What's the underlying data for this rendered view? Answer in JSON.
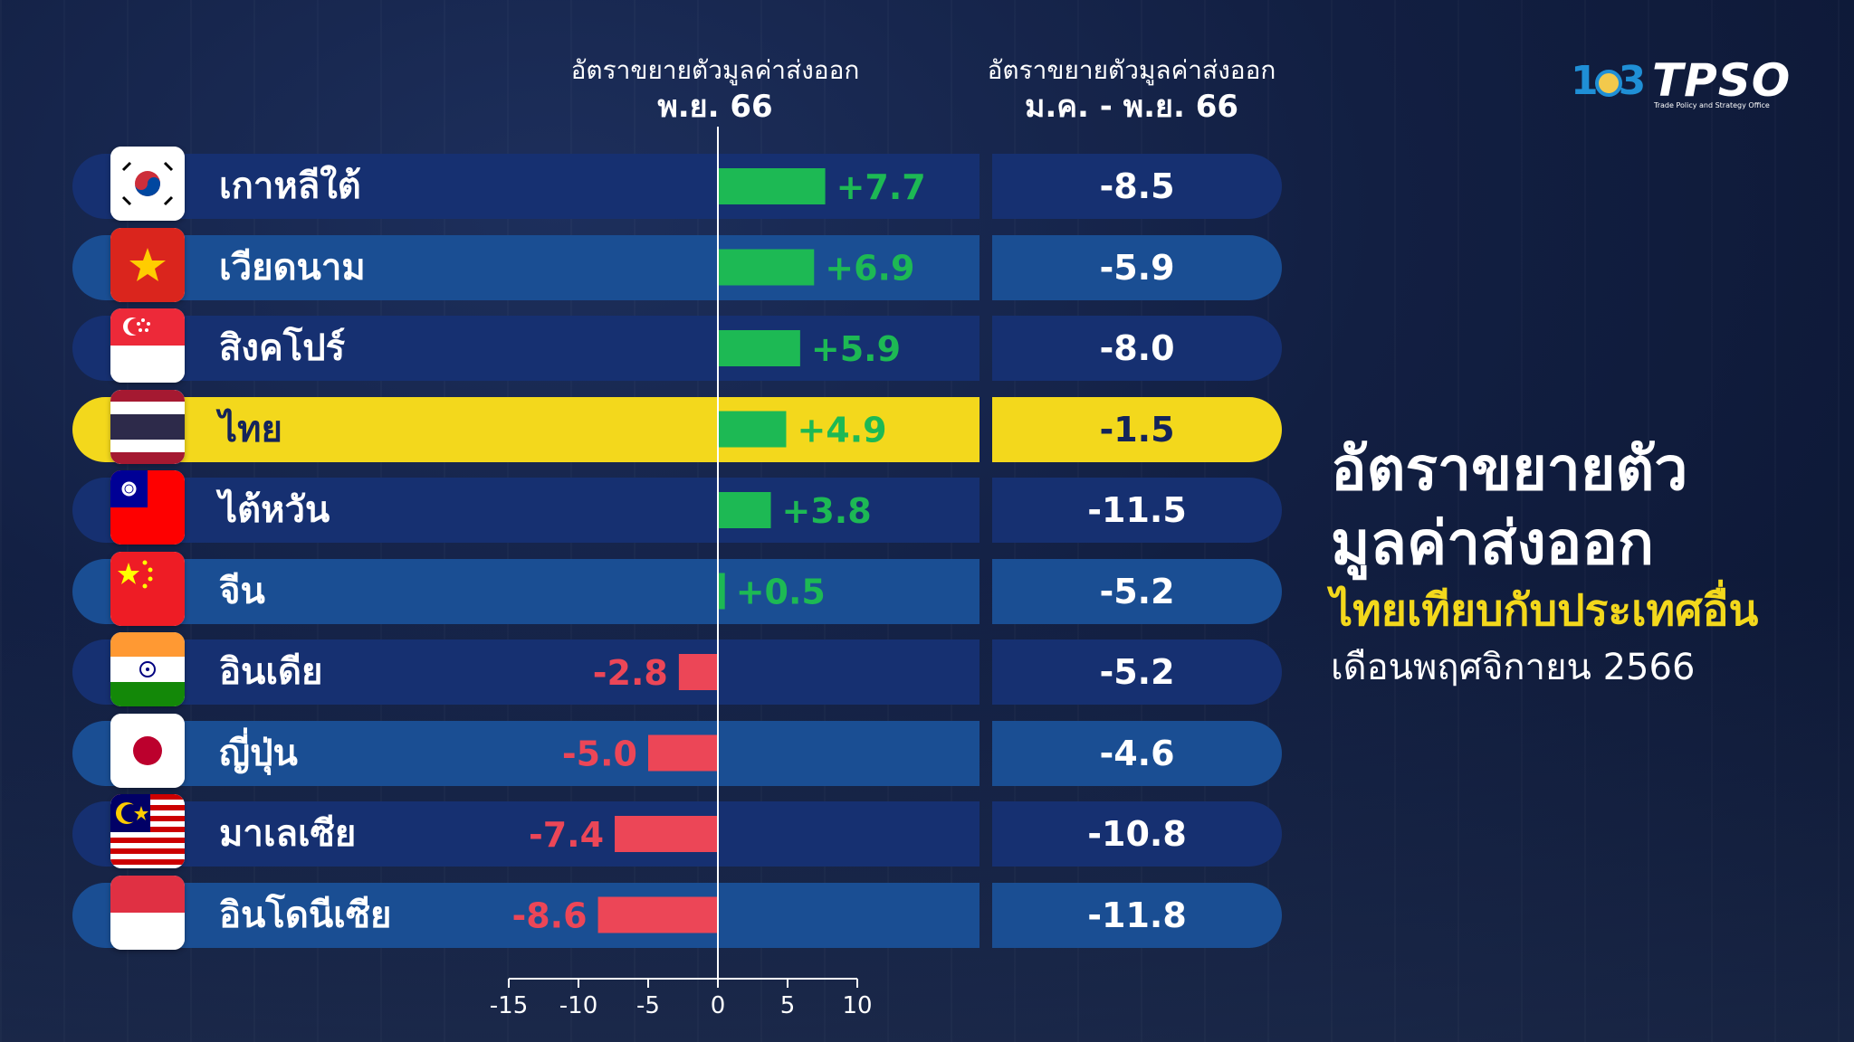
{
  "headers": {
    "monthly_title": "อัตราขยายตัวมูลค่าส่งออก",
    "monthly_period": "พ.ย. 66",
    "ytd_title": "อัตราขยายตัวมูลค่าส่งออก",
    "ytd_period": "ม.ค. - พ.ย. 66"
  },
  "logo": {
    "anniversary": "103",
    "brand": "TPSO",
    "subtitle": "Trade Policy and Strategy Office"
  },
  "side_title": {
    "line1": "อัตราขยายตัว",
    "line2": "มูลค่าส่งออก",
    "line3": "ไทยเทียบกับประเทศอื่น",
    "line4": "เดือนพฤศจิกายน 2566"
  },
  "colors": {
    "positive": "#1db954",
    "negative": "#ec4657",
    "highlight": "#f3d81c",
    "row_dark": "#163071",
    "row_light": "#1a4e93"
  },
  "chart_data": {
    "type": "bar",
    "orientation": "horizontal",
    "xlim": [
      -15,
      10
    ],
    "ticks": [
      -15,
      -10,
      -5,
      0,
      5,
      10
    ],
    "tick_labels": [
      "-15",
      "-10",
      "-5",
      "0",
      "5",
      "10"
    ],
    "categories": [
      "เกาหลีใต้",
      "เวียดนาม",
      "สิงคโปร์",
      "ไทย",
      "ไต้หวัน",
      "จีน",
      "อินเดีย",
      "ญี่ปุ่น",
      "มาเลเซีย",
      "อินโดนีเซีย"
    ],
    "series": [
      {
        "name": "อัตราขยายตัวมูลค่าส่งออก พ.ย. 66",
        "values": [
          7.7,
          6.9,
          5.9,
          4.9,
          3.8,
          0.5,
          -2.8,
          -5.0,
          -7.4,
          -8.6
        ],
        "labels": [
          "+7.7",
          "+6.9",
          "+5.9",
          "+4.9",
          "+3.8",
          "+0.5",
          "-2.8",
          "-5.0",
          "-7.4",
          "-8.6"
        ]
      },
      {
        "name": "อัตราขยายตัวมูลค่าส่งออก ม.ค. - พ.ย. 66",
        "values": [
          -8.5,
          -5.9,
          -8.0,
          -1.5,
          -11.5,
          -5.2,
          -5.2,
          -4.6,
          -10.8,
          -11.8
        ],
        "labels": [
          "-8.5",
          "-5.9",
          "-8.0",
          "-1.5",
          "-11.5",
          "-5.2",
          "-5.2",
          "-4.6",
          "-10.8",
          "-11.8"
        ]
      }
    ],
    "highlight": "ไทย"
  },
  "flags": [
    "korea",
    "vietnam",
    "singapore",
    "thailand",
    "taiwan",
    "china",
    "india",
    "japan",
    "malaysia",
    "indonesia"
  ]
}
